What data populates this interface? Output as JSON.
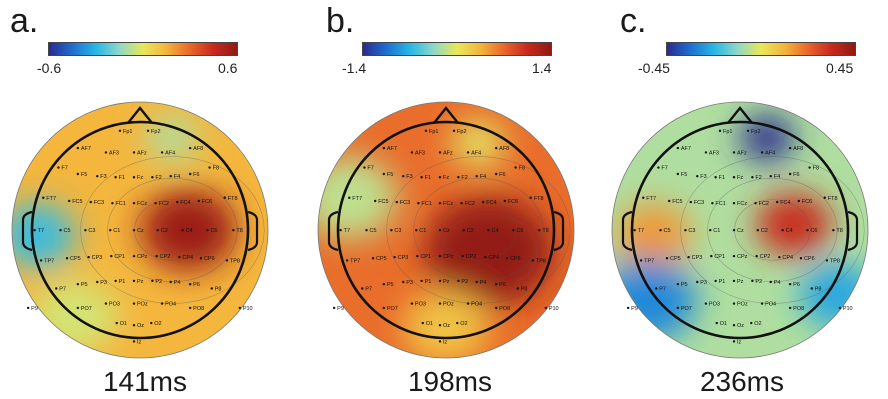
{
  "panels": [
    {
      "letter": "a.",
      "time": "141ms",
      "scale_min": "-0.6",
      "scale_max": "0.6",
      "palette": "warm"
    },
    {
      "letter": "b.",
      "time": "198ms",
      "scale_min": "-1.4",
      "scale_max": "1.4",
      "palette": "hot"
    },
    {
      "letter": "c.",
      "time": "236ms",
      "scale_min": "-0.45",
      "scale_max": "0.45",
      "palette": "cool"
    }
  ],
  "electrodes": [
    "Fp1",
    "Fp2",
    "AF7",
    "AF3",
    "AFz",
    "AF4",
    "AF8",
    "F7",
    "F5",
    "F3",
    "F1",
    "Fz",
    "F2",
    "F4",
    "F6",
    "F8",
    "FT7",
    "FC5",
    "FC3",
    "FC1",
    "FCz",
    "FC2",
    "FC4",
    "FC6",
    "FT8",
    "T7",
    "C5",
    "C3",
    "C1",
    "Cz",
    "C2",
    "C4",
    "C6",
    "T8",
    "TP7",
    "CP5",
    "CP3",
    "CP1",
    "CPz",
    "CP2",
    "CP4",
    "CP6",
    "TP8",
    "P7",
    "P5",
    "P3",
    "P1",
    "Pz",
    "P2",
    "P4",
    "P6",
    "P8",
    "PO7",
    "PO3",
    "POz",
    "PO4",
    "PO8",
    "P9",
    "P10",
    "O1",
    "Oz",
    "O2",
    "Iz"
  ],
  "colors": {
    "colormap": [
      "#2b2a8f",
      "#1f6fd1",
      "#27b7e6",
      "#8fd8c8",
      "#e8e85a",
      "#f4b43c",
      "#e8672a",
      "#c8281e",
      "#8e1b14"
    ]
  }
}
